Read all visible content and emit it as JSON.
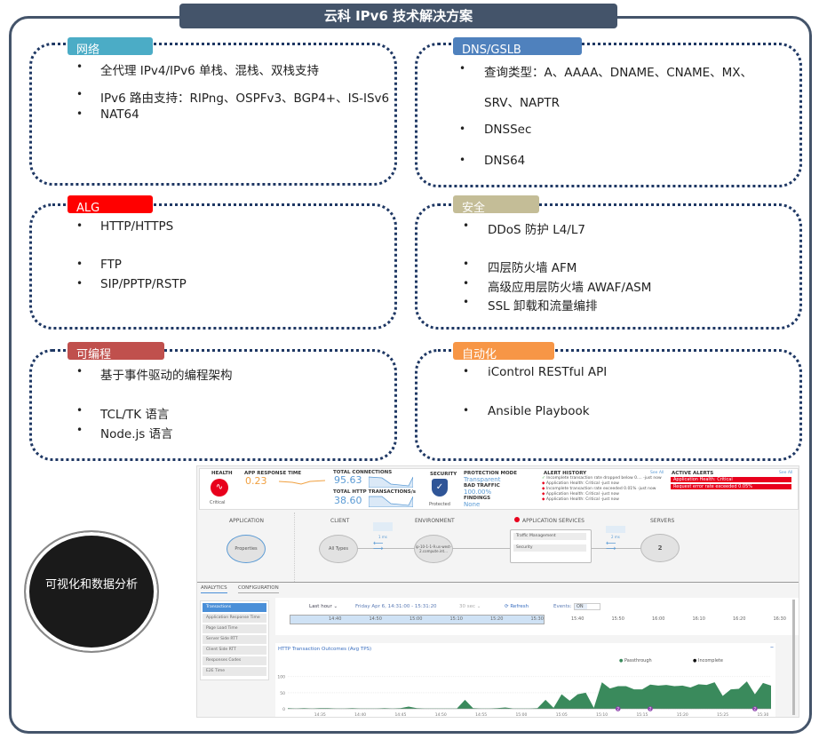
{
  "title": "云科 IPv6 技术解决方案",
  "colors": {
    "frame": "#44546a",
    "dotted_border": "#1f3864",
    "network": "#4bacc6",
    "dns": "#4f81bd",
    "alg": "#ff0000",
    "security": "#c4bd97",
    "programmable": "#c0504d",
    "automation": "#f79646",
    "chart_fill": "#3a8a5c",
    "alert": "#e8001c"
  },
  "cards": [
    {
      "label": "网络",
      "items": [
        "全代理 IPv4/IPv6 单栈、混栈、双栈支持",
        "IPv6 路由支持：RIPng、OSPFv3、BGP4+、IS-ISv6",
        "NAT64"
      ]
    },
    {
      "label": "DNS/GSLB",
      "items": [
        "查询类型：A、AAAA、DNAME、CNAME、MX、",
        "SRV、NAPTR",
        "DNSSec",
        "DNS64"
      ]
    },
    {
      "label": "ALG",
      "items": [
        "HTTP/HTTPS",
        "FTP",
        "SIP/PPTP/RSTP"
      ]
    },
    {
      "label": "安全",
      "items": [
        "DDoS 防护 L4/L7",
        "四层防火墙 AFM",
        "高级应用层防火墙 AWAF/ASM",
        "SSL 卸载和流量编排"
      ]
    },
    {
      "label": "可编程",
      "items": [
        "基于事件驱动的编程架构",
        "TCL/TK 语言",
        "Node.js 语言"
      ]
    },
    {
      "label": "自动化",
      "items": [
        "iControl RESTful API",
        "Ansible Playbook"
      ]
    }
  ],
  "badge": "可视化和数据分析",
  "dashboard": {
    "health": {
      "label": "HEALTH",
      "status": "Critical",
      "icon": "heartbeat-icon"
    },
    "app_response": {
      "label": "APP RESPONSE TIME",
      "value": "0.23"
    },
    "connections": {
      "label": "TOTAL CONNECTIONS",
      "value": "95.63"
    },
    "http_tx": {
      "label": "TOTAL HTTP TRANSACTIONS/s",
      "value": "38.60"
    },
    "security": {
      "label": "SECURITY",
      "status": "Protected",
      "icon": "shield-check-icon"
    },
    "protection": {
      "mode_label": "PROTECTION MODE",
      "mode": "Transparent",
      "bad_label": "BAD TRAFFIC",
      "bad": "100.00%",
      "findings_label": "FINDINGS",
      "findings": "None"
    },
    "alert_history": {
      "label": "ALERT HISTORY",
      "see_all": "See All",
      "items": [
        "Incomplete transaction rate dropped below 0.... -just now",
        "Application Health: Critical -just now",
        "Incomplete transaction rate exceeded 0.01% -just now",
        "Application Health: Critical -just now",
        "Application Health: Critical -just now"
      ]
    },
    "active_alerts": {
      "label": "ACTIVE ALERTS",
      "see_all": "See All",
      "items": [
        "Application Health: Critical",
        "Request error rate exceeded 0.05%"
      ]
    },
    "topology": {
      "application": "APPLICATION",
      "properties": "Properties",
      "client": "CLIENT",
      "all_types": "All Types",
      "client_latency": "1 ms",
      "environment": "ENVIRONMENT",
      "env_node": "ip-10-1-1-9.us-west-2.compute.int...",
      "app_services": "APPLICATION SERVICES",
      "traffic_mgmt": "Traffic Management",
      "security": "Security",
      "server_latency": "2 ms",
      "servers": "SERVERS",
      "server_count": "2"
    },
    "tabs": [
      "ANALYTICS",
      "CONFIGURATION"
    ],
    "menu": [
      "Transactions",
      "Application Response Time",
      "Page Load Time",
      "Server Side RTT",
      "Client Side RTT",
      "Responses Codes",
      "E2E Time"
    ],
    "controls": {
      "range": "Last hour ⌄",
      "period": "Friday Apr 6, 14:31:00 - 15:31:20",
      "interval": "30 sec ⌄",
      "refresh": "⟳ Refresh",
      "events_label": "Events:",
      "events_value": "ON"
    },
    "timeline_ticks": [
      "14:40",
      "14:50",
      "15:00",
      "15:10",
      "15:20",
      "15:30",
      "15:40",
      "15:50",
      "16:00",
      "16:10",
      "16:20",
      "16:30"
    ]
  },
  "chart_data": {
    "type": "area",
    "title": "HTTP Transaction Outcomes (Avg TPS)",
    "legend": [
      "Passthrough",
      "Incomplete"
    ],
    "legend_position": "top-right",
    "ylim": [
      0,
      110
    ],
    "yticks": [
      "0",
      "50",
      "100"
    ],
    "xticks": [
      "14:35",
      "14:40",
      "14:45",
      "14:50",
      "14:55",
      "15:00",
      "15:05",
      "15:10",
      "15:15",
      "15:20",
      "15:25",
      "15:30"
    ],
    "x": [
      "14:31",
      "14:32",
      "14:33",
      "14:34",
      "14:35",
      "14:36",
      "14:37",
      "14:38",
      "14:39",
      "14:40",
      "14:41",
      "14:42",
      "14:43",
      "14:44",
      "14:45",
      "14:46",
      "14:47",
      "14:48",
      "14:49",
      "14:50",
      "14:51",
      "14:52",
      "14:53",
      "14:54",
      "14:55",
      "14:56",
      "14:57",
      "14:58",
      "14:59",
      "15:00",
      "15:01",
      "15:02",
      "15:03",
      "15:04",
      "15:05",
      "15:06",
      "15:07",
      "15:08",
      "15:09",
      "15:10",
      "15:11",
      "15:12",
      "15:13",
      "15:14",
      "15:15",
      "15:16",
      "15:17",
      "15:18",
      "15:19",
      "15:20",
      "15:21",
      "15:22",
      "15:23",
      "15:24",
      "15:25",
      "15:26",
      "15:27",
      "15:28",
      "15:29",
      "15:30",
      "15:31"
    ],
    "series": [
      {
        "name": "Passthrough",
        "values": [
          2,
          1,
          2,
          1,
          2,
          2,
          1,
          1,
          2,
          1,
          1,
          1,
          2,
          1,
          2,
          7,
          2,
          1,
          1,
          1,
          1,
          1,
          28,
          2,
          1,
          1,
          2,
          4,
          1,
          1,
          1,
          2,
          28,
          3,
          45,
          25,
          45,
          50,
          3,
          82,
          63,
          70,
          70,
          60,
          60,
          75,
          72,
          74,
          70,
          72,
          66,
          76,
          74,
          82,
          40,
          60,
          62,
          85,
          45,
          80,
          72
        ]
      }
    ],
    "event_markers": [
      "15:12",
      "15:16",
      "15:29"
    ],
    "marker_label": "2"
  }
}
